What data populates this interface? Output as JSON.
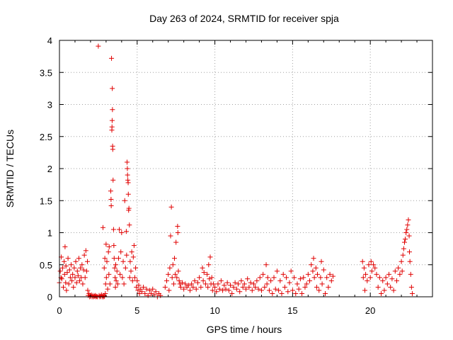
{
  "chart_data": {
    "type": "scatter",
    "title": "Day 263 of 2024, SRMTID for receiver spja",
    "xlabel": "GPS time / hours",
    "ylabel": "SRMTID / TECUs",
    "xlim": [
      0,
      24
    ],
    "ylim": [
      0,
      4
    ],
    "xticks": [
      0,
      5,
      10,
      15,
      20
    ],
    "yticks": [
      0,
      0.5,
      1,
      1.5,
      2,
      2.5,
      3,
      3.5,
      4
    ],
    "xtick_labels": [
      "0",
      "5",
      "10",
      "15",
      "20"
    ],
    "ytick_labels": [
      "0",
      "0.5",
      "1",
      "1.5",
      "2",
      "2.5",
      "3",
      "3.5",
      "4"
    ],
    "grid": true,
    "marker": "+",
    "color": "#e00000",
    "series": [
      {
        "name": "SRMTID",
        "points": [
          [
            0.0,
            0.22
          ],
          [
            0.05,
            0.4
          ],
          [
            0.1,
            0.3
          ],
          [
            0.12,
            0.62
          ],
          [
            0.15,
            0.28
          ],
          [
            0.2,
            0.45
          ],
          [
            0.25,
            0.15
          ],
          [
            0.3,
            0.55
          ],
          [
            0.33,
            0.35
          ],
          [
            0.36,
            0.78
          ],
          [
            0.4,
            0.22
          ],
          [
            0.42,
            0.48
          ],
          [
            0.45,
            0.1
          ],
          [
            0.5,
            0.38
          ],
          [
            0.55,
            0.6
          ],
          [
            0.6,
            0.2
          ],
          [
            0.65,
            0.42
          ],
          [
            0.7,
            0.3
          ],
          [
            0.75,
            0.5
          ],
          [
            0.8,
            0.25
          ],
          [
            0.85,
            0.35
          ],
          [
            0.9,
            0.15
          ],
          [
            0.95,
            0.45
          ],
          [
            1.0,
            0.3
          ],
          [
            1.05,
            0.55
          ],
          [
            1.1,
            0.22
          ],
          [
            1.15,
            0.4
          ],
          [
            1.2,
            0.33
          ],
          [
            1.25,
            0.6
          ],
          [
            1.3,
            0.25
          ],
          [
            1.35,
            0.45
          ],
          [
            1.4,
            0.3
          ],
          [
            1.45,
            0.5
          ],
          [
            1.5,
            0.2
          ],
          [
            1.55,
            0.42
          ],
          [
            1.6,
            0.65
          ],
          [
            1.65,
            0.3
          ],
          [
            1.7,
            0.72
          ],
          [
            1.75,
            0.4
          ],
          [
            1.8,
            0.55
          ],
          [
            1.82,
            0.1
          ],
          [
            1.85,
            0.02
          ],
          [
            1.9,
            0.05
          ],
          [
            1.95,
            0.0
          ],
          [
            2.0,
            0.01
          ],
          [
            2.05,
            0.03
          ],
          [
            2.1,
            0.0
          ],
          [
            2.15,
            0.02
          ],
          [
            2.2,
            0.0
          ],
          [
            2.25,
            0.01
          ],
          [
            2.3,
            0.02
          ],
          [
            2.35,
            0.0
          ],
          [
            2.4,
            0.01
          ],
          [
            2.45,
            0.0
          ],
          [
            2.5,
            3.91
          ],
          [
            2.55,
            0.02
          ],
          [
            2.6,
            0.0
          ],
          [
            2.65,
            0.01
          ],
          [
            2.7,
            0.03
          ],
          [
            2.75,
            0.0
          ],
          [
            2.8,
            0.02
          ],
          [
            2.85,
            0.0
          ],
          [
            2.9,
            0.01
          ],
          [
            2.95,
            0.05
          ],
          [
            2.8,
            1.08
          ],
          [
            2.88,
            0.45
          ],
          [
            2.92,
            0.6
          ],
          [
            2.97,
            0.2
          ],
          [
            3.0,
            0.82
          ],
          [
            3.02,
            0.3
          ],
          [
            3.05,
            0.55
          ],
          [
            3.1,
            0.12
          ],
          [
            3.15,
            0.7
          ],
          [
            3.18,
            0.35
          ],
          [
            3.2,
            0.78
          ],
          [
            3.25,
            0.2
          ],
          [
            3.3,
            1.65
          ],
          [
            3.32,
            1.52
          ],
          [
            3.33,
            1.42
          ],
          [
            3.35,
            3.72
          ],
          [
            3.37,
            2.6
          ],
          [
            3.38,
            2.65
          ],
          [
            3.39,
            2.75
          ],
          [
            3.4,
            3.25
          ],
          [
            3.41,
            2.92
          ],
          [
            3.42,
            2.35
          ],
          [
            3.43,
            2.3
          ],
          [
            3.45,
            1.82
          ],
          [
            3.48,
            1.05
          ],
          [
            3.5,
            0.8
          ],
          [
            3.52,
            0.6
          ],
          [
            3.55,
            0.45
          ],
          [
            3.58,
            0.3
          ],
          [
            3.6,
            0.15
          ],
          [
            3.62,
            0.5
          ],
          [
            3.65,
            0.25
          ],
          [
            3.7,
            0.4
          ],
          [
            3.75,
            0.2
          ],
          [
            3.8,
            0.6
          ],
          [
            3.85,
            1.05
          ],
          [
            3.9,
            0.35
          ],
          [
            3.95,
            0.7
          ],
          [
            4.0,
            1.0
          ],
          [
            4.05,
            0.3
          ],
          [
            4.1,
            0.55
          ],
          [
            4.15,
            0.2
          ],
          [
            4.2,
            1.5
          ],
          [
            4.25,
            0.45
          ],
          [
            4.3,
            1.02
          ],
          [
            4.32,
            0.65
          ],
          [
            4.35,
            2.1
          ],
          [
            4.37,
            2.0
          ],
          [
            4.38,
            1.9
          ],
          [
            4.4,
            1.82
          ],
          [
            4.42,
            1.78
          ],
          [
            4.43,
            1.6
          ],
          [
            4.45,
            1.35
          ],
          [
            4.47,
            1.38
          ],
          [
            4.5,
            1.12
          ],
          [
            4.52,
            0.3
          ],
          [
            4.55,
            0.55
          ],
          [
            4.6,
            0.4
          ],
          [
            4.65,
            0.7
          ],
          [
            4.7,
            0.25
          ],
          [
            4.75,
            0.62
          ],
          [
            4.8,
            0.8
          ],
          [
            4.85,
            0.3
          ],
          [
            4.9,
            0.45
          ],
          [
            4.95,
            0.15
          ],
          [
            5.0,
            0.25
          ],
          [
            5.05,
            0.1
          ],
          [
            5.1,
            0.18
          ],
          [
            5.15,
            0.05
          ],
          [
            5.2,
            0.12
          ],
          [
            5.3,
            0.08
          ],
          [
            5.4,
            0.15
          ],
          [
            5.5,
            0.05
          ],
          [
            5.6,
            0.12
          ],
          [
            5.7,
            0.02
          ],
          [
            5.8,
            0.1
          ],
          [
            5.9,
            0.05
          ],
          [
            6.0,
            0.12
          ],
          [
            6.1,
            0.03
          ],
          [
            6.2,
            0.08
          ],
          [
            6.3,
            0.0
          ],
          [
            6.4,
            0.05
          ],
          [
            6.5,
            0.02
          ],
          [
            6.8,
            0.15
          ],
          [
            6.9,
            0.25
          ],
          [
            7.0,
            0.35
          ],
          [
            7.05,
            0.1
          ],
          [
            7.1,
            0.45
          ],
          [
            7.15,
            0.95
          ],
          [
            7.2,
            1.4
          ],
          [
            7.25,
            0.3
          ],
          [
            7.3,
            0.5
          ],
          [
            7.35,
            0.2
          ],
          [
            7.4,
            0.6
          ],
          [
            7.45,
            0.35
          ],
          [
            7.5,
            0.85
          ],
          [
            7.55,
            0.3
          ],
          [
            7.6,
            1.1
          ],
          [
            7.62,
            1.0
          ],
          [
            7.65,
            0.4
          ],
          [
            7.7,
            0.25
          ],
          [
            7.75,
            0.2
          ],
          [
            7.8,
            0.15
          ],
          [
            7.9,
            0.22
          ],
          [
            8.0,
            0.12
          ],
          [
            8.1,
            0.2
          ],
          [
            8.2,
            0.15
          ],
          [
            8.3,
            0.18
          ],
          [
            8.4,
            0.1
          ],
          [
            8.5,
            0.2
          ],
          [
            8.6,
            0.15
          ],
          [
            8.7,
            0.25
          ],
          [
            8.8,
            0.12
          ],
          [
            8.9,
            0.22
          ],
          [
            9.0,
            0.3
          ],
          [
            9.1,
            0.15
          ],
          [
            9.2,
            0.45
          ],
          [
            9.25,
            0.25
          ],
          [
            9.3,
            0.38
          ],
          [
            9.4,
            0.2
          ],
          [
            9.5,
            0.35
          ],
          [
            9.55,
            0.15
          ],
          [
            9.6,
            0.5
          ],
          [
            9.65,
            0.28
          ],
          [
            9.7,
            0.62
          ],
          [
            9.75,
            0.2
          ],
          [
            9.8,
            0.3
          ],
          [
            9.85,
            0.1
          ],
          [
            9.9,
            0.2
          ],
          [
            10.0,
            0.15
          ],
          [
            10.1,
            0.08
          ],
          [
            10.2,
            0.2
          ],
          [
            10.3,
            0.12
          ],
          [
            10.4,
            0.25
          ],
          [
            10.5,
            0.1
          ],
          [
            10.6,
            0.18
          ],
          [
            10.7,
            0.12
          ],
          [
            10.8,
            0.22
          ],
          [
            10.9,
            0.1
          ],
          [
            11.0,
            0.18
          ],
          [
            11.1,
            0.05
          ],
          [
            11.2,
            0.15
          ],
          [
            11.3,
            0.22
          ],
          [
            11.4,
            0.12
          ],
          [
            11.5,
            0.2
          ],
          [
            11.6,
            0.08
          ],
          [
            11.7,
            0.25
          ],
          [
            11.8,
            0.15
          ],
          [
            11.9,
            0.2
          ],
          [
            12.0,
            0.12
          ],
          [
            12.1,
            0.28
          ],
          [
            12.2,
            0.15
          ],
          [
            12.3,
            0.22
          ],
          [
            12.4,
            0.1
          ],
          [
            12.5,
            0.2
          ],
          [
            12.6,
            0.15
          ],
          [
            12.7,
            0.25
          ],
          [
            12.8,
            0.12
          ],
          [
            12.9,
            0.3
          ],
          [
            13.0,
            0.1
          ],
          [
            13.1,
            0.35
          ],
          [
            13.2,
            0.15
          ],
          [
            13.3,
            0.5
          ],
          [
            13.35,
            0.2
          ],
          [
            13.4,
            0.3
          ],
          [
            13.5,
            0.1
          ],
          [
            13.6,
            0.25
          ],
          [
            13.7,
            0.05
          ],
          [
            13.8,
            0.3
          ],
          [
            13.9,
            0.12
          ],
          [
            14.0,
            0.4
          ],
          [
            14.1,
            0.1
          ],
          [
            14.2,
            0.25
          ],
          [
            14.3,
            0.05
          ],
          [
            14.4,
            0.35
          ],
          [
            14.5,
            0.15
          ],
          [
            14.6,
            0.3
          ],
          [
            14.7,
            0.08
          ],
          [
            14.8,
            0.22
          ],
          [
            14.9,
            0.4
          ],
          [
            15.0,
            0.1
          ],
          [
            15.1,
            0.3
          ],
          [
            15.2,
            0.05
          ],
          [
            15.3,
            0.2
          ],
          [
            15.4,
            0.12
          ],
          [
            15.5,
            0.28
          ],
          [
            15.6,
            0.05
          ],
          [
            15.7,
            0.3
          ],
          [
            15.8,
            0.15
          ],
          [
            15.9,
            0.2
          ],
          [
            16.0,
            0.35
          ],
          [
            16.1,
            0.25
          ],
          [
            16.2,
            0.5
          ],
          [
            16.3,
            0.4
          ],
          [
            16.35,
            0.6
          ],
          [
            16.4,
            0.3
          ],
          [
            16.5,
            0.45
          ],
          [
            16.55,
            0.15
          ],
          [
            16.6,
            0.35
          ],
          [
            16.7,
            0.1
          ],
          [
            16.8,
            0.3
          ],
          [
            16.85,
            0.55
          ],
          [
            16.9,
            0.2
          ],
          [
            17.0,
            0.42
          ],
          [
            17.1,
            0.05
          ],
          [
            17.2,
            0.3
          ],
          [
            17.3,
            0.15
          ],
          [
            17.4,
            0.35
          ],
          [
            17.5,
            0.25
          ],
          [
            17.6,
            0.32
          ],
          [
            19.5,
            0.55
          ],
          [
            19.55,
            0.3
          ],
          [
            19.6,
            0.45
          ],
          [
            19.65,
            0.1
          ],
          [
            19.7,
            0.35
          ],
          [
            19.8,
            0.25
          ],
          [
            19.9,
            0.5
          ],
          [
            20.0,
            0.3
          ],
          [
            20.05,
            0.55
          ],
          [
            20.1,
            0.4
          ],
          [
            20.2,
            0.5
          ],
          [
            20.3,
            0.45
          ],
          [
            20.4,
            0.35
          ],
          [
            20.5,
            0.15
          ],
          [
            20.6,
            0.3
          ],
          [
            20.7,
            0.05
          ],
          [
            20.8,
            0.25
          ],
          [
            20.9,
            0.1
          ],
          [
            21.0,
            0.3
          ],
          [
            21.1,
            0.2
          ],
          [
            21.2,
            0.35
          ],
          [
            21.3,
            0.15
          ],
          [
            21.4,
            0.28
          ],
          [
            21.5,
            0.1
          ],
          [
            21.6,
            0.4
          ],
          [
            21.7,
            0.25
          ],
          [
            21.8,
            0.45
          ],
          [
            21.9,
            0.35
          ],
          [
            22.0,
            0.55
          ],
          [
            22.05,
            0.4
          ],
          [
            22.1,
            0.65
          ],
          [
            22.15,
            0.75
          ],
          [
            22.2,
            0.85
          ],
          [
            22.25,
            0.9
          ],
          [
            22.3,
            1.0
          ],
          [
            22.35,
            1.05
          ],
          [
            22.4,
            1.12
          ],
          [
            22.45,
            1.2
          ],
          [
            22.5,
            0.95
          ],
          [
            22.52,
            0.7
          ],
          [
            22.55,
            0.55
          ],
          [
            22.6,
            0.35
          ],
          [
            22.65,
            0.15
          ],
          [
            22.7,
            0.05
          ]
        ]
      }
    ]
  }
}
